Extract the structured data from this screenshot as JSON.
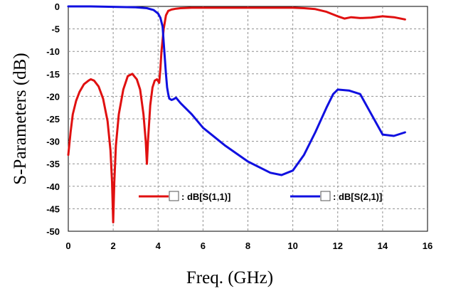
{
  "chart_data": {
    "type": "line",
    "title": "",
    "xlabel": "Freq. (GHz)",
    "ylabel": "S-Parameters (dB)",
    "xlim": [
      0,
      16
    ],
    "ylim": [
      -50,
      0
    ],
    "x_ticks": [
      "0",
      "2",
      "4",
      "6",
      "8",
      "10",
      "12",
      "14",
      "16"
    ],
    "y_ticks": [
      "0",
      "-5",
      "-10",
      "-15",
      "-20",
      "-25",
      "-30",
      "-35",
      "-40",
      "-45",
      "-50"
    ],
    "grid": true,
    "legend_placement": "bottom",
    "series": [
      {
        "name": ": dB[S(1,1)]",
        "color": "#e01010",
        "x": [
          0.0,
          0.1,
          0.2,
          0.35,
          0.5,
          0.7,
          0.9,
          1.0,
          1.15,
          1.35,
          1.55,
          1.75,
          1.88,
          1.95,
          2.0,
          2.05,
          2.12,
          2.25,
          2.45,
          2.65,
          2.85,
          3.05,
          3.2,
          3.35,
          3.45,
          3.5,
          3.55,
          3.65,
          3.75,
          3.85,
          3.95,
          4.05,
          4.1,
          4.15,
          4.25,
          4.35,
          4.45,
          4.6,
          4.8,
          5.0,
          5.5,
          6.0,
          7.0,
          8.0,
          9.0,
          10.0,
          10.5,
          11.0,
          11.5,
          12.0,
          12.3,
          12.6,
          13.0,
          13.5,
          14.0,
          14.5,
          15.0
        ],
        "y": [
          -33,
          -28,
          -24,
          -21,
          -19,
          -17.3,
          -16.5,
          -16.2,
          -16.5,
          -17.8,
          -20.5,
          -25.5,
          -32,
          -39,
          -48,
          -39,
          -31,
          -24,
          -18.5,
          -15.5,
          -15,
          -16.2,
          -18.5,
          -24,
          -30,
          -35,
          -30,
          -22,
          -18,
          -16.5,
          -16.2,
          -17,
          -14,
          -10,
          -5,
          -2,
          -1,
          -0.7,
          -0.5,
          -0.4,
          -0.3,
          -0.3,
          -0.3,
          -0.3,
          -0.3,
          -0.3,
          -0.4,
          -0.6,
          -1.2,
          -2.2,
          -2.7,
          -2.4,
          -2.6,
          -2.5,
          -2.2,
          -2.4,
          -2.9
        ]
      },
      {
        "name": ": dB[S(2,1)]",
        "color": "#1010e0",
        "x": [
          0.0,
          1.0,
          2.0,
          3.0,
          3.5,
          3.8,
          4.0,
          4.1,
          4.2,
          4.25,
          4.3,
          4.35,
          4.4,
          4.45,
          4.5,
          4.6,
          4.7,
          4.8,
          5.0,
          5.5,
          6.0,
          7.0,
          8.0,
          9.0,
          9.5,
          10.0,
          10.5,
          11.0,
          11.5,
          11.8,
          12.0,
          12.5,
          13.0,
          13.5,
          14.0,
          14.5,
          15.0
        ],
        "y": [
          0,
          0,
          -0.1,
          -0.2,
          -0.4,
          -0.8,
          -1.6,
          -2.5,
          -4.5,
          -8,
          -11.5,
          -15,
          -18,
          -19.5,
          -20.5,
          -20.8,
          -20.6,
          -20.3,
          -21.5,
          -24,
          -27,
          -31,
          -34.5,
          -37,
          -37.5,
          -36.5,
          -33,
          -28,
          -22.5,
          -19.5,
          -18.5,
          -18.7,
          -19.5,
          -24,
          -28.5,
          -28.8,
          -28
        ]
      }
    ]
  }
}
